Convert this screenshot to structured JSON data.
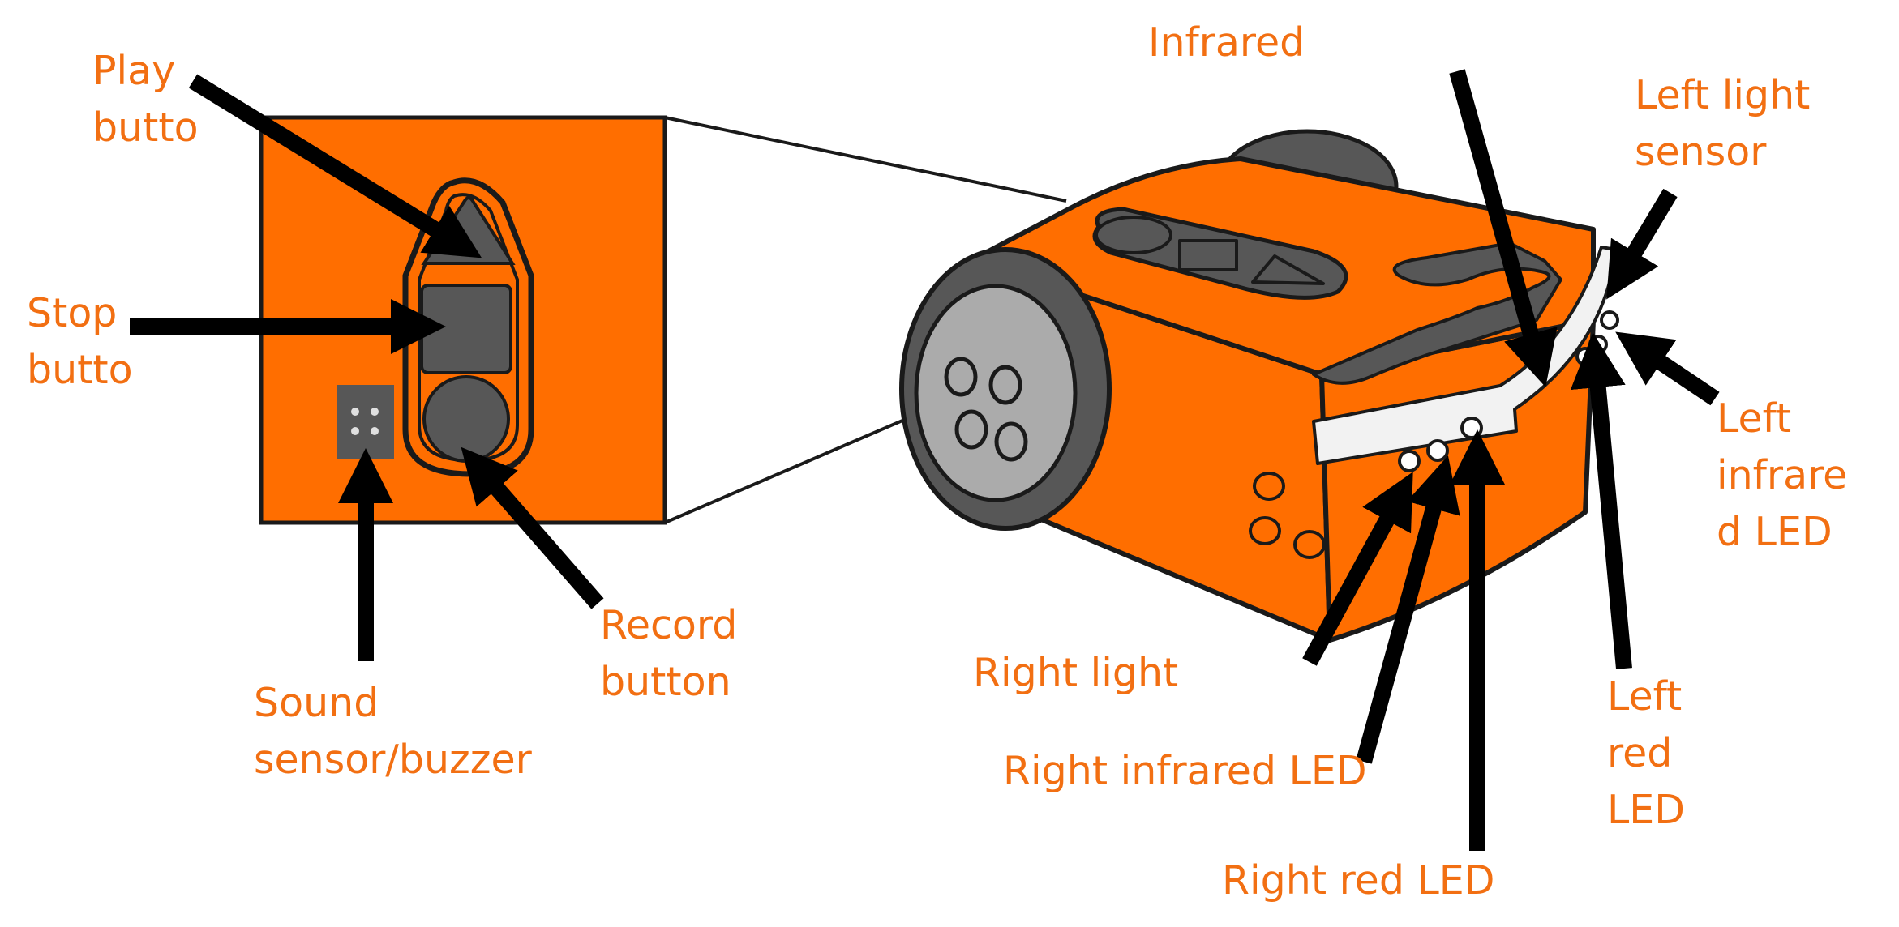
{
  "colors": {
    "label": "#F26F12",
    "robot_orange": "#FF6E00",
    "button_grey": "#575757",
    "wheel_grey": "#ABABAB",
    "outline": "#1A1A1A",
    "arrow": "#000000"
  },
  "labels": {
    "play": "Play\nbutto",
    "stop": "Stop\nbutto",
    "sound": "Sound\nsensor/buzzer",
    "record": "Record\nbutton",
    "infrared": "Infrared",
    "left_light": "Left light\nsensor",
    "left_infrared": "Left\ninfrare\nd LED",
    "left_red": "Left\nred\nLED",
    "right_light": "Right light",
    "right_infrared": "Right infrared LED",
    "right_red": "Right red LED"
  }
}
